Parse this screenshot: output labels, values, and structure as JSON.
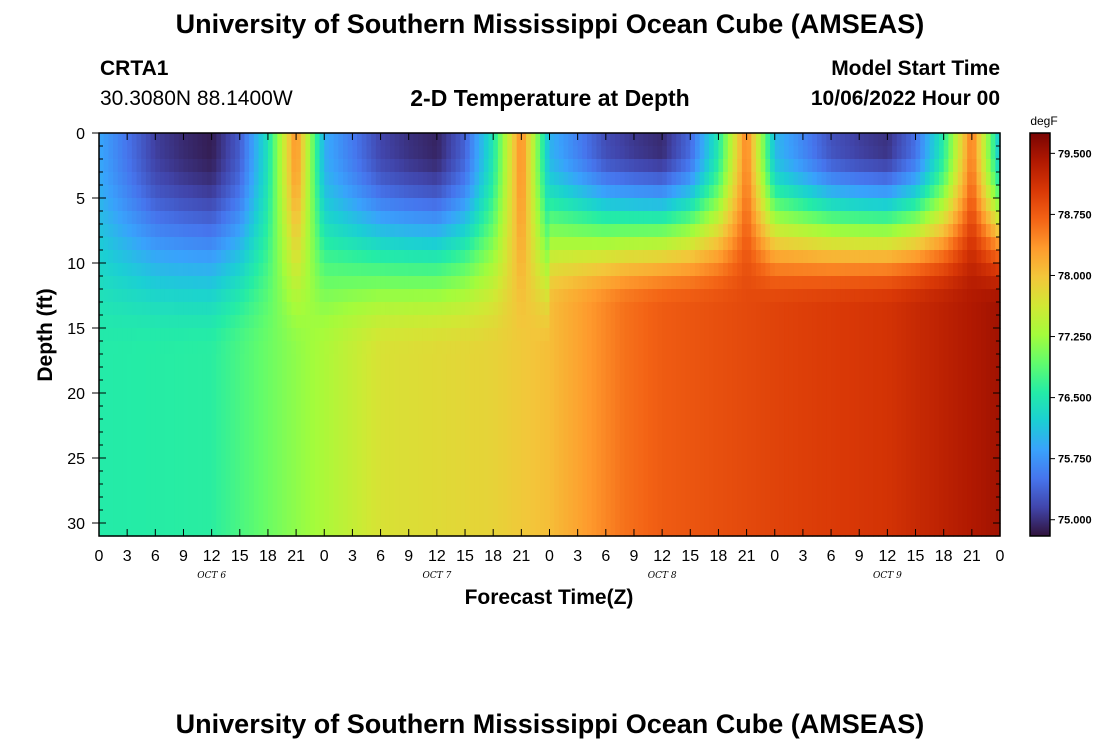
{
  "header": {
    "title": "University of Southern Mississippi Ocean Cube (AMSEAS)",
    "station": "CRTA1",
    "coords": "30.3080N  88.1400W",
    "subtitle": "2-D Temperature at Depth",
    "model_label": "Model Start Time",
    "model_time": "10/06/2022 Hour 00"
  },
  "footer": {
    "title": "University of Southern Mississippi Ocean Cube (AMSEAS)"
  },
  "chart_data": {
    "type": "heatmap",
    "title": "2-D Temperature at Depth",
    "xlabel": "Forecast Time(Z)",
    "ylabel": "Depth (ft)",
    "x_hours_range": [
      0,
      96
    ],
    "x_tick_step_hours": 3,
    "x_tick_labels": [
      "0",
      "3",
      "6",
      "9",
      "12",
      "15",
      "18",
      "21",
      "0",
      "3",
      "6",
      "9",
      "12",
      "15",
      "18",
      "21",
      "0",
      "3",
      "6",
      "9",
      "12",
      "15",
      "18",
      "21",
      "0",
      "3",
      "6",
      "9",
      "12",
      "15",
      "18",
      "21",
      "0"
    ],
    "date_labels": [
      {
        "text": "OCT 6",
        "hour": 12
      },
      {
        "text": "OCT 7",
        "hour": 36
      },
      {
        "text": "OCT 8",
        "hour": 60
      },
      {
        "text": "OCT 9",
        "hour": 84
      }
    ],
    "ylim": [
      0,
      31
    ],
    "y_ticks": [
      0,
      5,
      10,
      15,
      20,
      25,
      30
    ],
    "y_tick_labels": [
      "0",
      "5",
      "10",
      "15",
      "20",
      "25",
      "30"
    ],
    "colorbar": {
      "unit": "degF",
      "range": [
        74.8,
        79.75
      ],
      "ticks": [
        79.5,
        78.75,
        78.0,
        77.25,
        76.5,
        75.75,
        75.0
      ],
      "tick_labels": [
        "79.500",
        "78.750",
        "78.000",
        "77.250",
        "76.500",
        "75.750",
        "75.000"
      ],
      "colors": [
        "#30123b",
        "#4145ab",
        "#4675ed",
        "#39a2fc",
        "#1bcfd4",
        "#24eca6",
        "#61fc6c",
        "#a4fc3b",
        "#d1e834",
        "#f3c63a",
        "#fe9b2d",
        "#f36315",
        "#d93806",
        "#b11901",
        "#7a0403"
      ]
    },
    "cycle": {
      "times": [
        0,
        3,
        6,
        9,
        12,
        15,
        18,
        21,
        24
      ],
      "surface_degF": [
        75.9,
        75.5,
        75.1,
        74.95,
        74.85,
        75.3,
        76.4,
        78.4,
        75.9
      ]
    },
    "surface_trend_degF_per_hour": 0.002,
    "deep_profile": {
      "times": [
        0,
        12,
        20,
        30,
        42,
        48,
        56,
        60,
        72,
        84,
        96
      ],
      "degF": [
        76.55,
        76.6,
        77.1,
        77.7,
        77.85,
        78.05,
        78.6,
        78.75,
        78.95,
        79.1,
        79.5
      ]
    }
  }
}
